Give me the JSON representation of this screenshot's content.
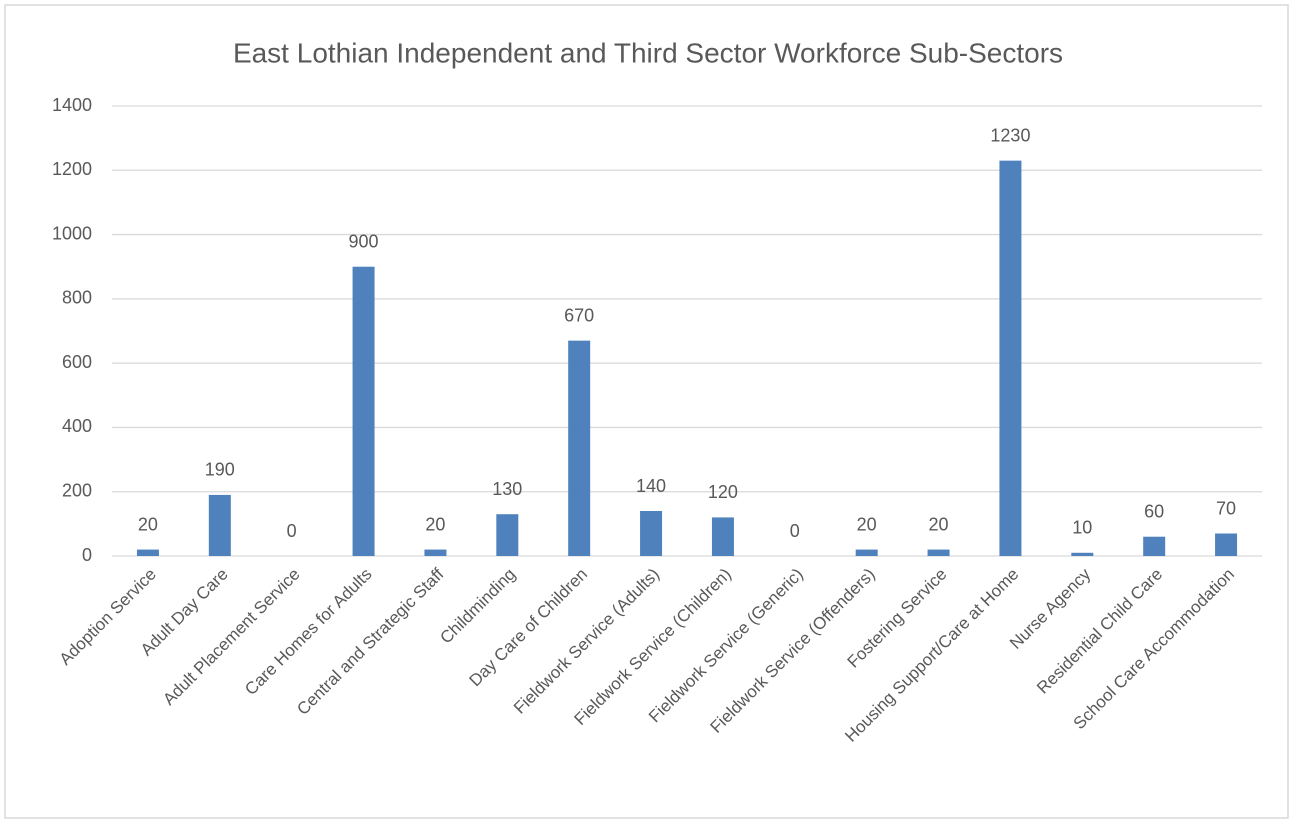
{
  "chart_data": {
    "type": "bar",
    "title": "East Lothian Independent and Third Sector Workforce Sub-Sectors",
    "categories": [
      "Adoption Service",
      "Adult Day Care",
      "Adult Placement Service",
      "Care Homes for Adults",
      "Central and Strategic Staff",
      "Childminding",
      "Day Care of Children",
      "Fieldwork Service (Adults)",
      "Fieldwork Service (Children)",
      "Fieldwork Service (Generic)",
      "Fieldwork Service (Offenders)",
      "Fostering Service",
      "Housing Support/Care at Home",
      "Nurse Agency",
      "Residential Child Care",
      "School Care Accommodation"
    ],
    "values": [
      20,
      190,
      0,
      900,
      20,
      130,
      670,
      140,
      120,
      0,
      20,
      20,
      1230,
      10,
      60,
      70
    ],
    "color": "#4f81bd",
    "ylim": [
      0,
      1400
    ],
    "yticks": [
      0,
      200,
      400,
      600,
      800,
      1000,
      1200,
      1400
    ],
    "grid": true
  }
}
